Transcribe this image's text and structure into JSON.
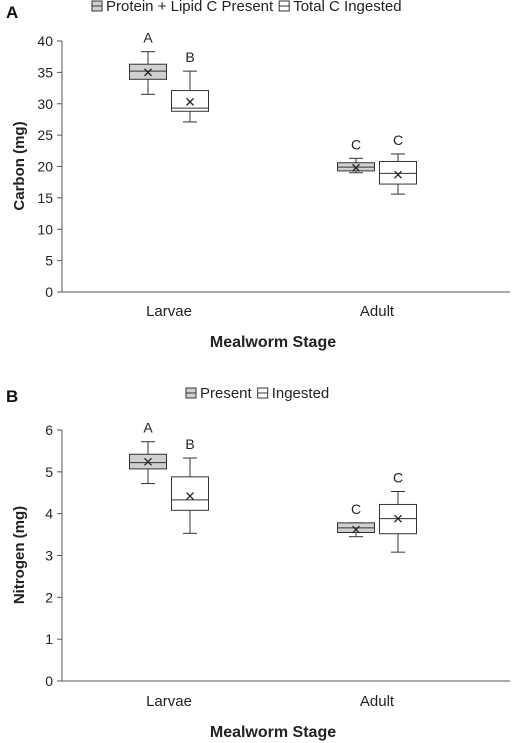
{
  "chart_data": [
    {
      "type": "box",
      "panel_label": "A",
      "title": "",
      "xlabel": "Mealworm Stage",
      "ylabel": "Carbon (mg)",
      "ylim": [
        0,
        40
      ],
      "yticks": [
        0,
        5,
        10,
        15,
        20,
        25,
        30,
        35,
        40
      ],
      "categories": [
        "Larvae",
        "Adult"
      ],
      "legend_position": "top-center",
      "series": [
        {
          "name": "Protein + Lipid C Present",
          "fill": "#d0d0d0",
          "boxes": [
            {
              "category": "Larvae",
              "min": 31.5,
              "q1": 33.9,
              "median": 35.2,
              "q3": 36.3,
              "max": 38.3,
              "mean": 35.0,
              "letter": "A"
            },
            {
              "category": "Adult",
              "min": 19.0,
              "q1": 19.3,
              "median": 19.9,
              "q3": 20.6,
              "max": 21.3,
              "mean": 19.8,
              "letter": "C"
            }
          ]
        },
        {
          "name": "Total C Ingested",
          "fill": "#ffffff",
          "boxes": [
            {
              "category": "Larvae",
              "min": 27.1,
              "q1": 28.8,
              "median": 29.3,
              "q3": 32.1,
              "max": 35.2,
              "mean": 30.3,
              "letter": "B"
            },
            {
              "category": "Adult",
              "min": 15.6,
              "q1": 17.2,
              "median": 18.9,
              "q3": 20.8,
              "max": 22.0,
              "mean": 18.7,
              "letter": "C"
            }
          ]
        }
      ]
    },
    {
      "type": "box",
      "panel_label": "B",
      "title": "",
      "xlabel": "Mealworm Stage",
      "ylabel": "Nitrogen (mg)",
      "ylim": [
        0,
        6
      ],
      "yticks": [
        0,
        1,
        2,
        3,
        4,
        5,
        6
      ],
      "categories": [
        "Larvae",
        "Adult"
      ],
      "legend_position": "top-center",
      "series": [
        {
          "name": "Present",
          "fill": "#d0d0d0",
          "boxes": [
            {
              "category": "Larvae",
              "min": 4.72,
              "q1": 5.07,
              "median": 5.22,
              "q3": 5.42,
              "max": 5.72,
              "mean": 5.24,
              "letter": "A"
            },
            {
              "category": "Adult",
              "min": 3.45,
              "q1": 3.55,
              "median": 3.66,
              "q3": 3.78,
              "max": 3.78,
              "mean": 3.62,
              "letter": "C"
            }
          ]
        },
        {
          "name": "Ingested",
          "fill": "#ffffff",
          "boxes": [
            {
              "category": "Larvae",
              "min": 3.53,
              "q1": 4.08,
              "median": 4.33,
              "q3": 4.88,
              "max": 5.33,
              "mean": 4.42,
              "letter": "B"
            },
            {
              "category": "Adult",
              "min": 3.08,
              "q1": 3.52,
              "median": 3.88,
              "q3": 4.22,
              "max": 4.53,
              "mean": 3.88,
              "letter": "C"
            }
          ]
        }
      ]
    }
  ]
}
